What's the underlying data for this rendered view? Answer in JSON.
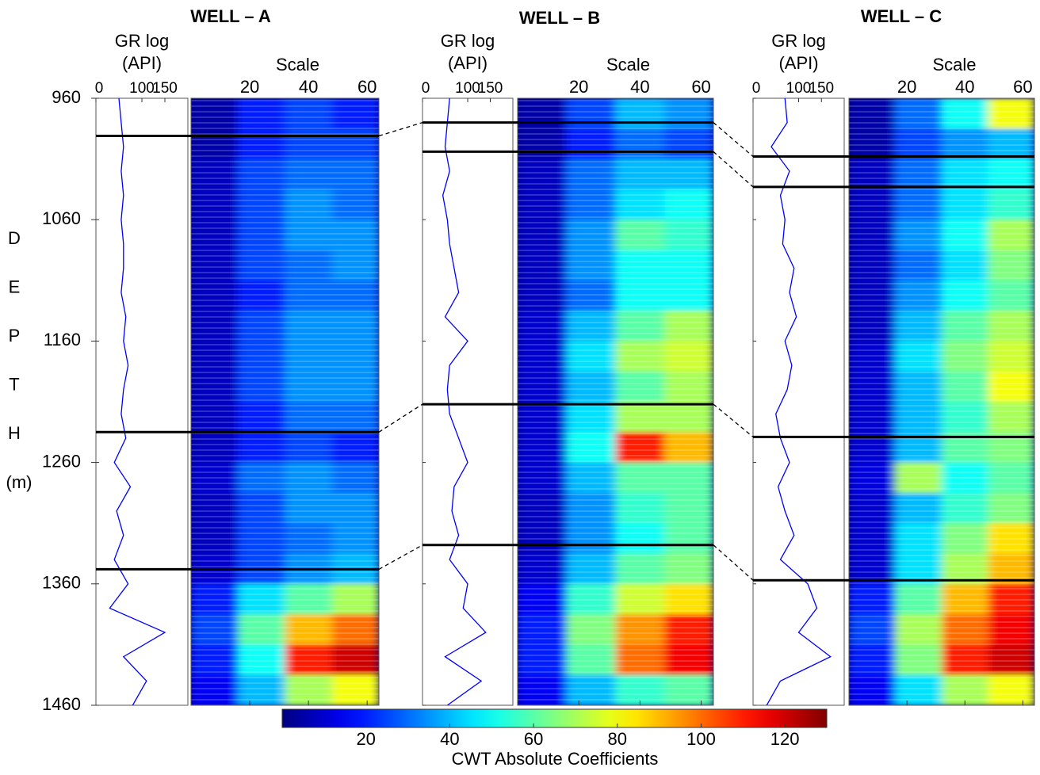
{
  "chart_data": {
    "type": "well-log-correlation",
    "depth_label_letters": [
      "D",
      "E",
      "P",
      "T",
      "H",
      "(m)"
    ],
    "ylim": [
      960,
      1460
    ],
    "yticks": [
      960,
      1060,
      1160,
      1260,
      1360,
      1460
    ],
    "gr_xlim": [
      0,
      200
    ],
    "gr_xticks": [
      0,
      100,
      150
    ],
    "scale_xlim": [
      0,
      64
    ],
    "scale_xticks": [
      20,
      40,
      60
    ],
    "gr_depths": [
      960,
      980,
      1000,
      1020,
      1040,
      1060,
      1080,
      1100,
      1120,
      1140,
      1160,
      1180,
      1200,
      1220,
      1240,
      1260,
      1280,
      1300,
      1320,
      1340,
      1360,
      1380,
      1400,
      1420,
      1440,
      1460
    ],
    "depth_bins": [
      960,
      985,
      1010,
      1035,
      1060,
      1085,
      1110,
      1135,
      1160,
      1185,
      1210,
      1235,
      1260,
      1285,
      1310,
      1335,
      1360,
      1385,
      1410,
      1435,
      1460
    ],
    "scale_bins": [
      0,
      16,
      32,
      48,
      64
    ],
    "wells": [
      {
        "title": "WELL – A",
        "gr_label": [
          "GR log",
          "(API)"
        ],
        "scale_label": "Scale",
        "gr_color": "#0000ff",
        "gr_values": [
          50,
          55,
          60,
          55,
          60,
          55,
          60,
          60,
          55,
          65,
          60,
          70,
          60,
          55,
          65,
          40,
          75,
          45,
          60,
          40,
          70,
          30,
          150,
          60,
          110,
          80
        ],
        "horizons": [
          991,
          1235,
          1348
        ],
        "scalogram": [
          [
            5,
            20,
            25,
            20
          ],
          [
            5,
            20,
            25,
            25
          ],
          [
            8,
            25,
            30,
            30
          ],
          [
            8,
            25,
            35,
            30
          ],
          [
            8,
            25,
            35,
            35
          ],
          [
            8,
            25,
            30,
            35
          ],
          [
            8,
            20,
            30,
            30
          ],
          [
            8,
            25,
            35,
            35
          ],
          [
            8,
            25,
            35,
            35
          ],
          [
            8,
            25,
            35,
            35
          ],
          [
            8,
            20,
            30,
            30
          ],
          [
            8,
            20,
            25,
            20
          ],
          [
            10,
            30,
            35,
            30
          ],
          [
            8,
            25,
            35,
            35
          ],
          [
            8,
            25,
            30,
            35
          ],
          [
            10,
            25,
            35,
            40
          ],
          [
            20,
            45,
            60,
            70
          ],
          [
            25,
            60,
            90,
            100
          ],
          [
            20,
            50,
            110,
            120
          ],
          [
            15,
            40,
            70,
            80
          ]
        ]
      },
      {
        "title": "WELL – B",
        "gr_label": [
          "GR log",
          "(API)"
        ],
        "scale_label": "Scale",
        "gr_color": "#0000ff",
        "gr_values": [
          60,
          55,
          50,
          60,
          45,
          55,
          60,
          70,
          80,
          50,
          100,
          60,
          55,
          60,
          80,
          100,
          70,
          65,
          80,
          60,
          100,
          90,
          140,
          50,
          130,
          55
        ],
        "horizons": [
          980,
          1004,
          1212,
          1328
        ],
        "scalogram": [
          [
            5,
            25,
            40,
            35
          ],
          [
            5,
            20,
            30,
            25
          ],
          [
            8,
            30,
            40,
            40
          ],
          [
            8,
            30,
            45,
            50
          ],
          [
            8,
            35,
            60,
            55
          ],
          [
            8,
            35,
            50,
            50
          ],
          [
            8,
            30,
            50,
            50
          ],
          [
            10,
            40,
            60,
            70
          ],
          [
            10,
            45,
            70,
            75
          ],
          [
            10,
            40,
            60,
            70
          ],
          [
            10,
            45,
            70,
            70
          ],
          [
            10,
            50,
            110,
            90
          ],
          [
            10,
            40,
            60,
            60
          ],
          [
            8,
            35,
            55,
            60
          ],
          [
            8,
            35,
            50,
            60
          ],
          [
            10,
            40,
            60,
            65
          ],
          [
            15,
            55,
            75,
            85
          ],
          [
            20,
            65,
            95,
            110
          ],
          [
            20,
            60,
            100,
            115
          ],
          [
            15,
            40,
            55,
            60
          ]
        ]
      },
      {
        "title": "WELL – C",
        "gr_label": [
          "GR log",
          "(API)"
        ],
        "scale_label": "Scale",
        "gr_color": "#0000ff",
        "gr_values": [
          70,
          75,
          40,
          80,
          60,
          70,
          65,
          90,
          80,
          95,
          70,
          85,
          75,
          50,
          60,
          80,
          55,
          70,
          90,
          60,
          120,
          140,
          100,
          170,
          60,
          30
        ],
        "horizons": [
          1008,
          1033,
          1239,
          1357
        ],
        "scalogram": [
          [
            5,
            30,
            50,
            80
          ],
          [
            5,
            25,
            35,
            40
          ],
          [
            8,
            30,
            45,
            50
          ],
          [
            8,
            30,
            45,
            55
          ],
          [
            8,
            35,
            50,
            70
          ],
          [
            8,
            30,
            45,
            65
          ],
          [
            8,
            35,
            50,
            60
          ],
          [
            8,
            40,
            60,
            70
          ],
          [
            10,
            45,
            65,
            75
          ],
          [
            10,
            40,
            60,
            80
          ],
          [
            10,
            40,
            55,
            70
          ],
          [
            10,
            40,
            60,
            65
          ],
          [
            12,
            70,
            50,
            60
          ],
          [
            10,
            40,
            55,
            65
          ],
          [
            10,
            45,
            65,
            85
          ],
          [
            10,
            45,
            70,
            90
          ],
          [
            20,
            60,
            90,
            110
          ],
          [
            25,
            70,
            100,
            115
          ],
          [
            20,
            65,
            110,
            120
          ],
          [
            15,
            45,
            70,
            80
          ]
        ]
      }
    ],
    "colorbar": {
      "label": "CWT Absolute Coefficients",
      "colormap": "jet",
      "lim": [
        0,
        130
      ],
      "ticks": [
        20,
        40,
        60,
        80,
        100,
        120
      ]
    }
  }
}
